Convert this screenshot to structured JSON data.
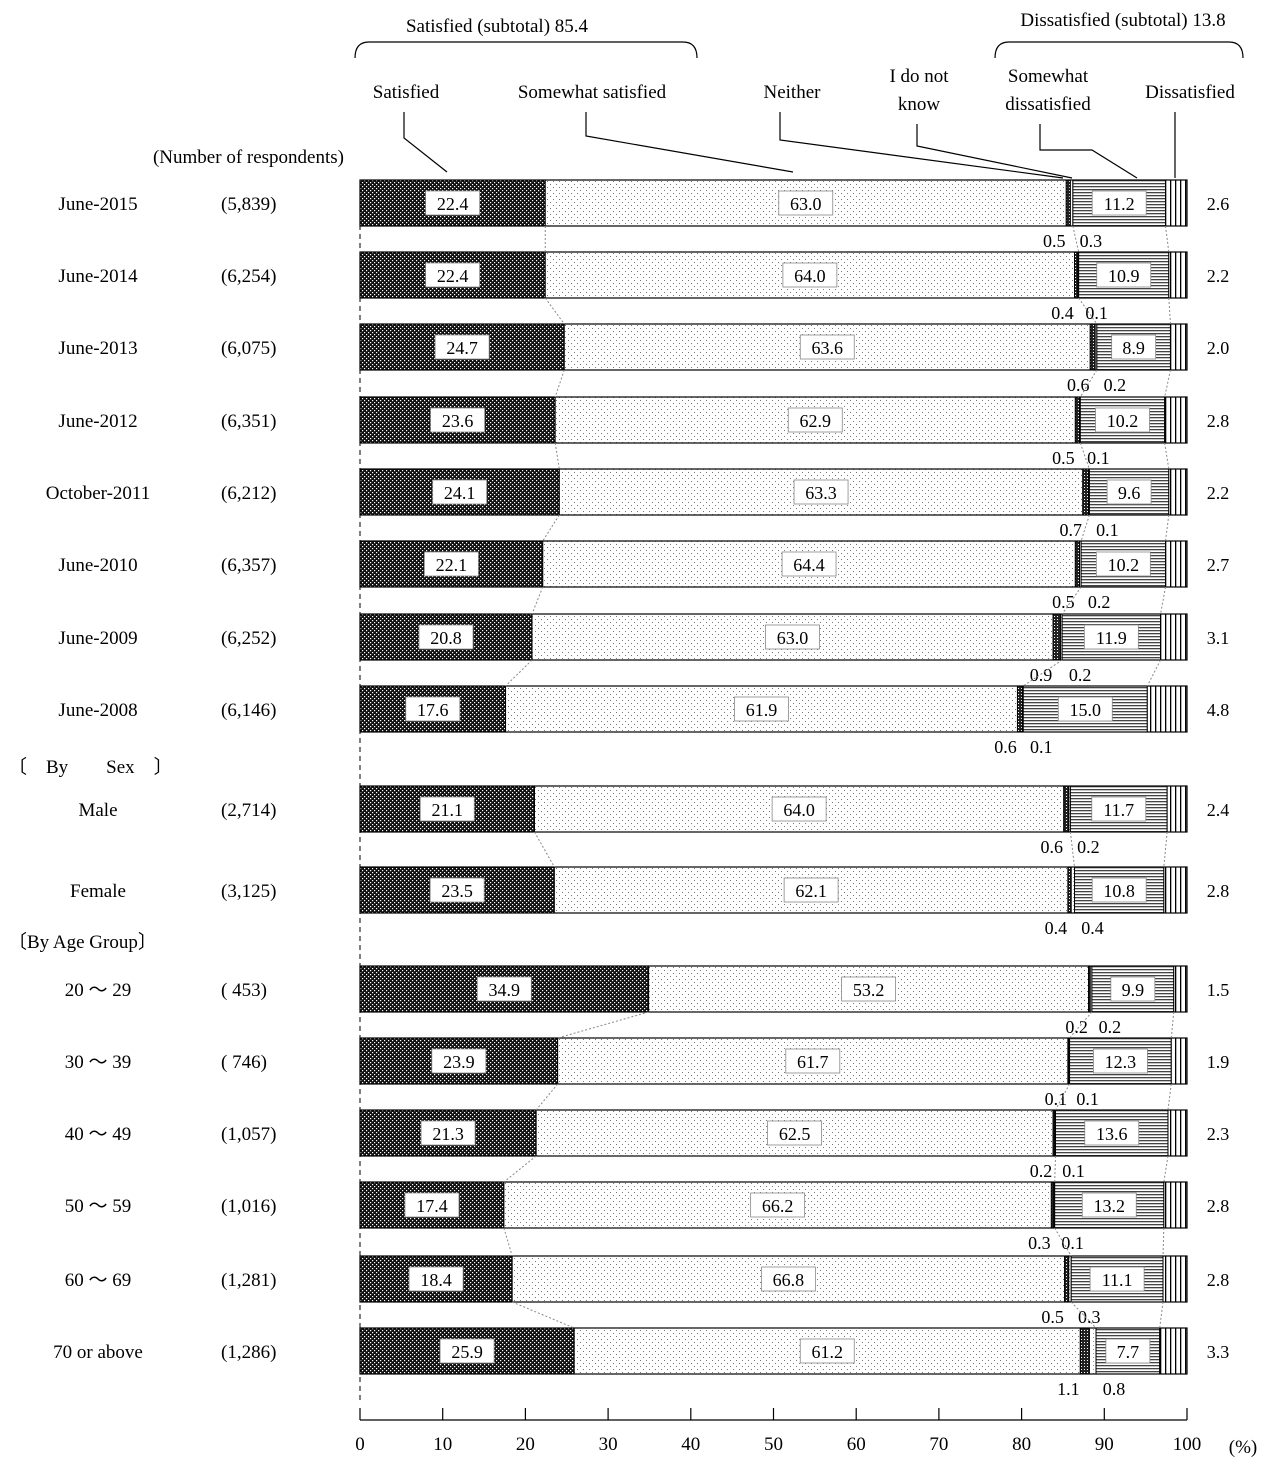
{
  "chart_data": {
    "type": "bar",
    "orientation": "horizontal",
    "stacked": true,
    "xlim": [
      0,
      100
    ],
    "x_ticks": [
      0,
      10,
      20,
      30,
      40,
      50,
      60,
      70,
      80,
      90,
      100
    ],
    "x_unit": "(%)",
    "respondents_header": "(Number of respondents)",
    "legend": {
      "labels": [
        "Satisfied",
        "Somewhat satisfied",
        "Neither",
        "I do not know",
        "Somewhat dissatisfied",
        "Dissatisfied"
      ],
      "label_lines": [
        [
          "Satisfied"
        ],
        [
          "Somewhat satisfied"
        ],
        [
          "Neither"
        ],
        [
          "I do not",
          "know"
        ],
        [
          "Somewhat",
          "dissatisfied"
        ],
        [
          "Dissatisfied"
        ]
      ],
      "subtotal_satisfied": "Satisfied (subtotal) 85.4",
      "subtotal_dissatisfied": "Dissatisfied (subtotal) 13.8"
    },
    "series_colors": {
      "satisfied": "#1a1a1a",
      "somewhat_satisfied": "#f2f2f2",
      "neither": "#333333",
      "dont_know": "#ffffff",
      "somewhat_dissatisfied": "#dddddd",
      "dissatisfied": "#ffffff"
    },
    "group_labels": {
      "by_sex": "〔　By　　Sex　〕",
      "by_age": "〔By Age Group〕"
    },
    "rows": [
      {
        "label": "June-2015",
        "n": "(5,839)",
        "values": [
          22.4,
          63.0,
          0.5,
          0.3,
          11.2,
          2.6
        ]
      },
      {
        "label": "June-2014",
        "n": "(6,254)",
        "values": [
          22.4,
          64.0,
          0.4,
          0.1,
          10.9,
          2.2
        ]
      },
      {
        "label": "June-2013",
        "n": "(6,075)",
        "values": [
          24.7,
          63.6,
          0.6,
          0.2,
          8.9,
          2.0
        ]
      },
      {
        "label": "June-2012",
        "n": "(6,351)",
        "values": [
          23.6,
          62.9,
          0.5,
          0.1,
          10.2,
          2.8
        ]
      },
      {
        "label": "October-2011",
        "n": "(6,212)",
        "values": [
          24.1,
          63.3,
          0.7,
          0.1,
          9.6,
          2.2
        ]
      },
      {
        "label": "June-2010",
        "n": "(6,357)",
        "values": [
          22.1,
          64.4,
          0.5,
          0.2,
          10.2,
          2.7
        ]
      },
      {
        "label": "June-2009",
        "n": "(6,252)",
        "values": [
          20.8,
          63.0,
          0.9,
          0.2,
          11.9,
          3.1
        ]
      },
      {
        "label": "June-2008",
        "n": "(6,146)",
        "values": [
          17.6,
          61.9,
          0.6,
          0.1,
          15.0,
          4.8
        ]
      },
      {
        "label": "Male",
        "n": "(2,714)",
        "values": [
          21.1,
          64.0,
          0.6,
          0.2,
          11.7,
          2.4
        ]
      },
      {
        "label": "Female",
        "n": "(3,125)",
        "values": [
          23.5,
          62.1,
          0.4,
          0.4,
          10.8,
          2.8
        ]
      },
      {
        "label": "20 ～ 29",
        "n": "( 453)",
        "values": [
          34.9,
          53.2,
          0.2,
          0.2,
          9.9,
          1.5
        ]
      },
      {
        "label": "30 ～ 39",
        "n": "( 746)",
        "values": [
          23.9,
          61.7,
          0.1,
          0.1,
          12.3,
          1.9
        ]
      },
      {
        "label": "40 ～ 49",
        "n": "(1,057)",
        "values": [
          21.3,
          62.5,
          0.2,
          0.1,
          13.6,
          2.3
        ]
      },
      {
        "label": "50 ～ 59",
        "n": "(1,016)",
        "values": [
          17.4,
          66.2,
          0.3,
          0.1,
          13.2,
          2.8
        ]
      },
      {
        "label": "60 ～ 69",
        "n": "(1,281)",
        "values": [
          18.4,
          66.8,
          0.5,
          0.3,
          11.1,
          2.8
        ]
      },
      {
        "label": "70 or above",
        "n": "(1,286)",
        "values": [
          25.9,
          61.2,
          1.1,
          0.8,
          7.7,
          3.3
        ]
      }
    ]
  }
}
